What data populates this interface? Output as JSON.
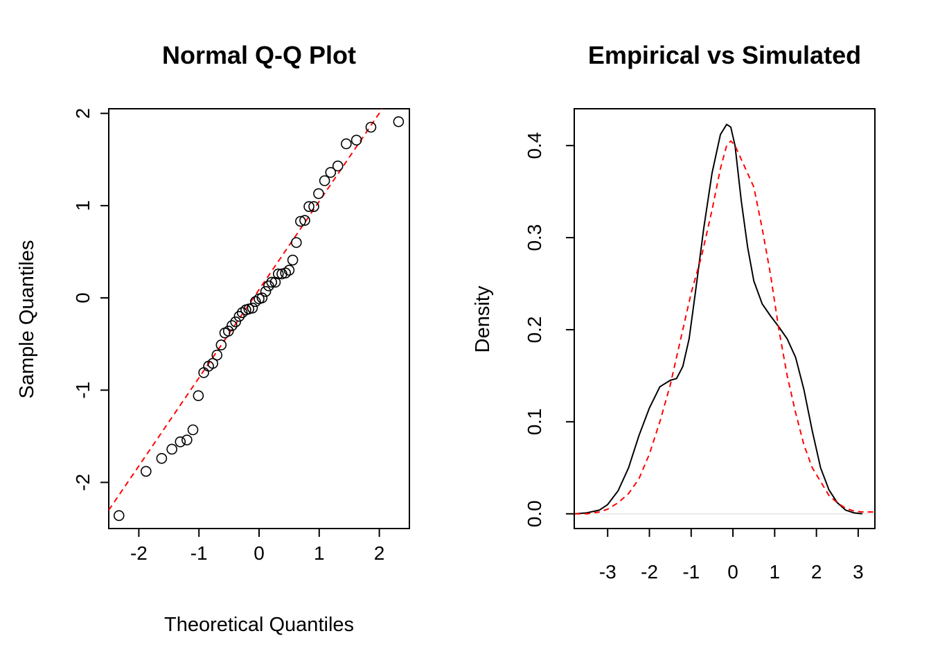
{
  "chart_data": [
    {
      "type": "scatter",
      "title": "Normal Q-Q Plot",
      "xlabel": "Theoretical Quantiles",
      "ylabel": "Sample Quantiles",
      "xlim": [
        -2.5,
        2.5
      ],
      "ylim": [
        -2.5,
        2.05
      ],
      "xticks": [
        -2,
        -1,
        0,
        1,
        2
      ],
      "yticks": [
        -2,
        -1,
        0,
        1,
        2
      ],
      "xtick_labels": [
        "-2",
        "-1",
        "0",
        "1",
        "2"
      ],
      "ytick_labels": [
        "-2",
        "-1",
        "0",
        "1",
        "2"
      ],
      "grid": false,
      "marker_color": "#000000",
      "reference_line": {
        "style": "dashed",
        "color": "#ff0000",
        "x": [
          -2.5,
          2.05
        ],
        "y": [
          -2.3,
          2.05
        ]
      },
      "points": [
        [
          -2.33,
          -2.36
        ],
        [
          -1.88,
          -1.88
        ],
        [
          -1.62,
          -1.74
        ],
        [
          -1.45,
          -1.64
        ],
        [
          -1.31,
          -1.56
        ],
        [
          -1.2,
          -1.54
        ],
        [
          -1.1,
          -1.43
        ],
        [
          -1.01,
          -1.06
        ],
        [
          -0.92,
          -0.81
        ],
        [
          -0.84,
          -0.74
        ],
        [
          -0.77,
          -0.71
        ],
        [
          -0.7,
          -0.62
        ],
        [
          -0.63,
          -0.51
        ],
        [
          -0.57,
          -0.38
        ],
        [
          -0.51,
          -0.36
        ],
        [
          -0.45,
          -0.3
        ],
        [
          -0.39,
          -0.26
        ],
        [
          -0.33,
          -0.2
        ],
        [
          -0.28,
          -0.16
        ],
        [
          -0.22,
          -0.13
        ],
        [
          -0.17,
          -0.12
        ],
        [
          -0.11,
          -0.11
        ],
        [
          -0.06,
          -0.04
        ],
        [
          0.0,
          -0.01
        ],
        [
          0.05,
          0.0
        ],
        [
          0.11,
          0.07
        ],
        [
          0.16,
          0.13
        ],
        [
          0.21,
          0.17
        ],
        [
          0.27,
          0.17
        ],
        [
          0.32,
          0.26
        ],
        [
          0.38,
          0.26
        ],
        [
          0.44,
          0.27
        ],
        [
          0.5,
          0.3
        ],
        [
          0.56,
          0.41
        ],
        [
          0.62,
          0.6
        ],
        [
          0.69,
          0.83
        ],
        [
          0.76,
          0.84
        ],
        [
          0.83,
          0.99
        ],
        [
          0.91,
          0.99
        ],
        [
          0.99,
          1.13
        ],
        [
          1.09,
          1.27
        ],
        [
          1.19,
          1.36
        ],
        [
          1.31,
          1.43
        ],
        [
          1.45,
          1.67
        ],
        [
          1.62,
          1.71
        ],
        [
          1.86,
          1.85
        ],
        [
          2.32,
          1.91
        ]
      ]
    },
    {
      "type": "line",
      "title": "Empirical vs Simulated",
      "xlabel": "",
      "ylabel": "Density",
      "xlim": [
        -3.8,
        3.4
      ],
      "ylim": [
        -0.016,
        0.44
      ],
      "xticks": [
        -3,
        -2,
        -1,
        0,
        1,
        2,
        3
      ],
      "yticks": [
        0.0,
        0.1,
        0.2,
        0.3,
        0.4
      ],
      "xtick_labels": [
        "-3",
        "-2",
        "-1",
        "0",
        "1",
        "2",
        "3"
      ],
      "ytick_labels": [
        "0.0",
        "0.1",
        "0.2",
        "0.3",
        "0.4"
      ],
      "grid": false,
      "baseline": {
        "y": 0,
        "color": "#e6e6e6"
      },
      "series": [
        {
          "color": "#000000",
          "style": "solid",
          "x": [
            -3.8,
            -3.5,
            -3.2,
            -3.0,
            -2.75,
            -2.5,
            -2.25,
            -2.0,
            -1.75,
            -1.5,
            -1.35,
            -1.2,
            -1.05,
            -0.9,
            -0.7,
            -0.5,
            -0.3,
            -0.15,
            -0.05,
            0.05,
            0.2,
            0.35,
            0.5,
            0.7,
            0.9,
            1.1,
            1.3,
            1.5,
            1.7,
            1.9,
            2.1,
            2.3,
            2.5,
            2.7,
            2.9,
            3.1
          ],
          "y": [
            0.0,
            0.001,
            0.004,
            0.01,
            0.025,
            0.05,
            0.085,
            0.115,
            0.138,
            0.145,
            0.147,
            0.16,
            0.19,
            0.24,
            0.31,
            0.37,
            0.412,
            0.423,
            0.42,
            0.4,
            0.34,
            0.29,
            0.253,
            0.228,
            0.215,
            0.203,
            0.19,
            0.17,
            0.135,
            0.09,
            0.05,
            0.026,
            0.012,
            0.004,
            0.001,
            0.0
          ]
        },
        {
          "color": "#ff0000",
          "style": "dashed",
          "x": [
            -3.8,
            -3.5,
            -3.2,
            -3.0,
            -2.75,
            -2.5,
            -2.25,
            -2.0,
            -1.75,
            -1.5,
            -1.25,
            -1.0,
            -0.75,
            -0.5,
            -0.3,
            -0.15,
            -0.05,
            0.05,
            0.2,
            0.35,
            0.5,
            0.7,
            0.9,
            1.1,
            1.3,
            1.5,
            1.7,
            1.9,
            2.1,
            2.3,
            2.5,
            2.7,
            2.9,
            3.1,
            3.4
          ],
          "y": [
            0.0,
            0.0,
            0.002,
            0.005,
            0.012,
            0.022,
            0.038,
            0.065,
            0.1,
            0.14,
            0.19,
            0.24,
            0.28,
            0.33,
            0.375,
            0.4,
            0.405,
            0.4,
            0.385,
            0.37,
            0.355,
            0.31,
            0.26,
            0.2,
            0.15,
            0.11,
            0.075,
            0.05,
            0.035,
            0.02,
            0.012,
            0.006,
            0.003,
            0.002,
            0.002
          ]
        }
      ]
    }
  ]
}
